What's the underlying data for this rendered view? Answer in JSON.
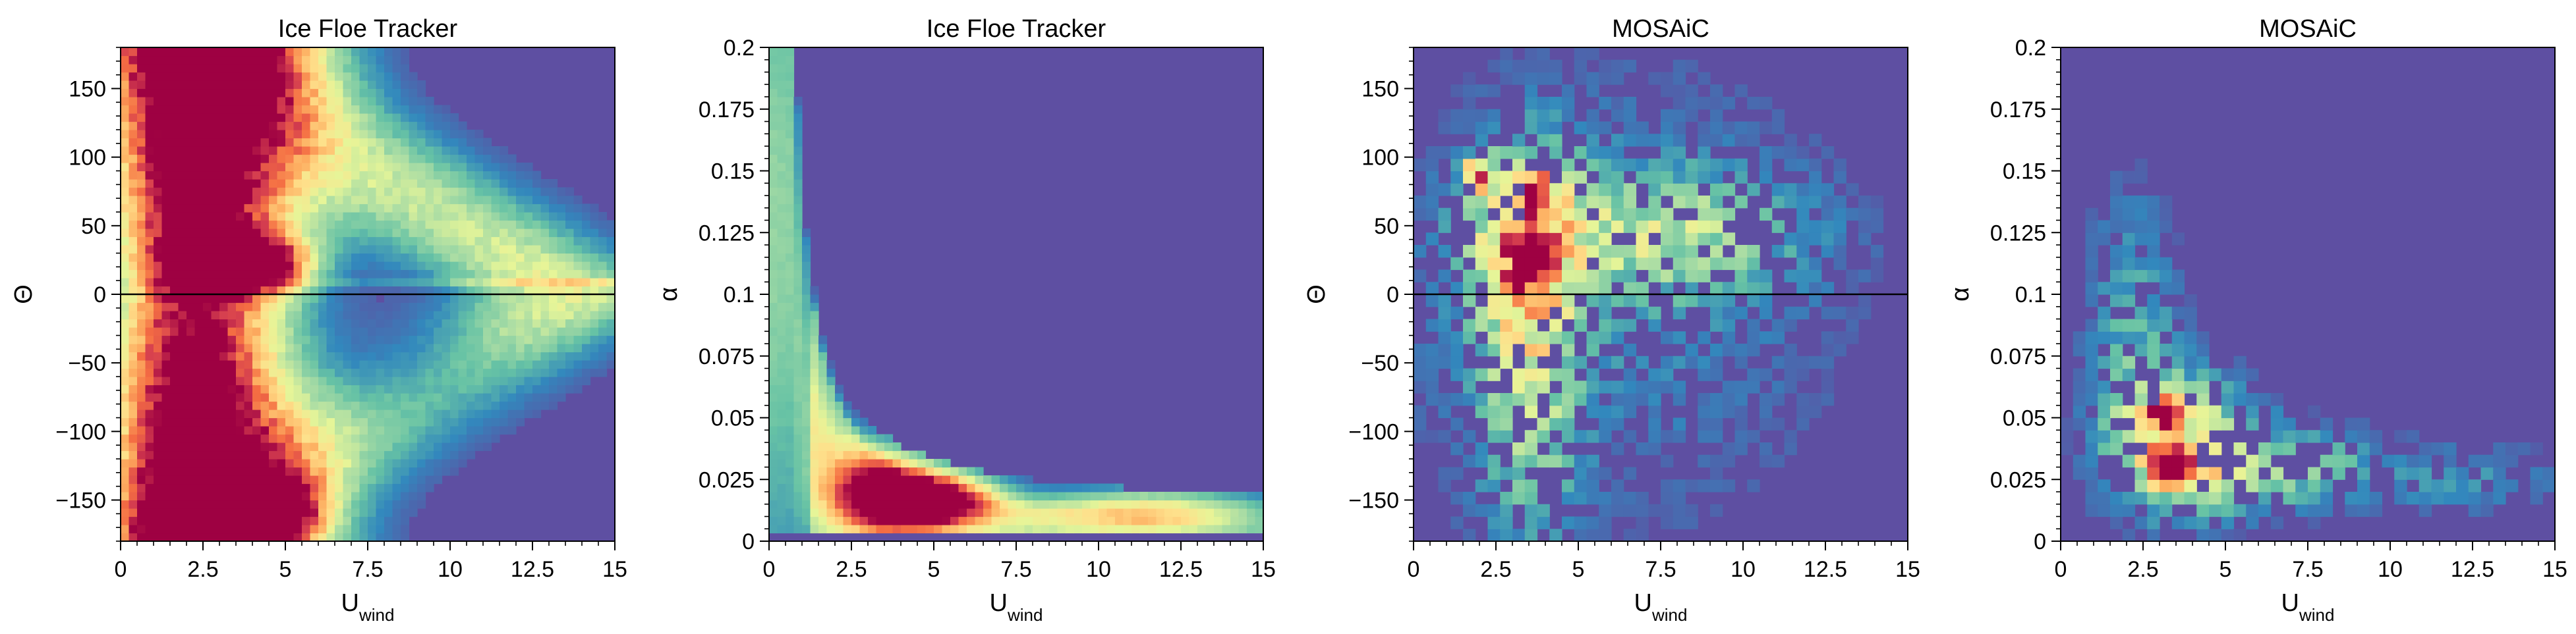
{
  "chart_data": [
    {
      "type": "heatmap",
      "title": "Ice Floe Tracker",
      "xlabel": "U",
      "xlabel_sub": "wind",
      "ylabel": "Θ",
      "xlim": [
        0,
        15
      ],
      "ylim": [
        -180,
        180
      ],
      "xticks": [
        "0",
        "2.5",
        "5",
        "7.5",
        "10",
        "12.5",
        "15"
      ],
      "yticks": [
        "−150",
        "−100",
        "−50",
        "0",
        "50",
        "100",
        "150"
      ],
      "ytick_values": [
        -150,
        -100,
        -50,
        0,
        50,
        100,
        150
      ],
      "bins": [
        60,
        60
      ],
      "reference_line": 0,
      "density_peaks": [
        {
          "x": 3.0,
          "y": 170,
          "intensity": 0.9
        },
        {
          "x": 2.8,
          "y": -168,
          "intensity": 0.95
        },
        {
          "x": 4.2,
          "y": 22,
          "intensity": 0.95
        },
        {
          "x": 2.6,
          "y": 22,
          "intensity": 0.7
        },
        {
          "x": 5.0,
          "y": -155,
          "intensity": 0.7
        }
      ]
    },
    {
      "type": "heatmap",
      "title": "Ice Floe Tracker",
      "xlabel": "U",
      "xlabel_sub": "wind",
      "ylabel": "α",
      "xlim": [
        0,
        15
      ],
      "ylim": [
        0,
        0.2
      ],
      "xticks": [
        "0",
        "2.5",
        "5",
        "7.5",
        "10",
        "12.5",
        "15"
      ],
      "yticks": [
        "0",
        "0.025",
        "0.05",
        "0.075",
        "0.1",
        "0.125",
        "0.15",
        "0.175",
        "0.2"
      ],
      "ytick_values": [
        0,
        0.025,
        0.05,
        0.075,
        0.1,
        0.125,
        0.15,
        0.175,
        0.2
      ],
      "bins": [
        60,
        60
      ],
      "density_peaks": [
        {
          "x": 4.8,
          "y": 0.017,
          "intensity": 1.0
        },
        {
          "x": 3.5,
          "y": 0.022,
          "intensity": 0.75
        }
      ]
    },
    {
      "type": "heatmap",
      "title": "MOSAiC",
      "xlabel": "U",
      "xlabel_sub": "wind",
      "ylabel": "Θ",
      "xlim": [
        0,
        15
      ],
      "ylim": [
        -180,
        180
      ],
      "xticks": [
        "0",
        "2.5",
        "5",
        "7.5",
        "10",
        "12.5",
        "15"
      ],
      "yticks": [
        "−150",
        "−100",
        "−50",
        "0",
        "50",
        "100",
        "150"
      ],
      "ytick_values": [
        -150,
        -100,
        -50,
        0,
        50,
        100,
        150
      ],
      "bins": [
        40,
        40
      ],
      "reference_line": 0,
      "density_peaks": [
        {
          "x": 3.3,
          "y": 20,
          "intensity": 1.0
        },
        {
          "x": 3.5,
          "y": 35,
          "intensity": 0.75
        },
        {
          "x": 1.9,
          "y": 88,
          "intensity": 0.7
        },
        {
          "x": 3.7,
          "y": 80,
          "intensity": 0.7
        }
      ]
    },
    {
      "type": "heatmap",
      "title": "MOSAiC",
      "xlabel": "U",
      "xlabel_sub": "wind",
      "ylabel": "α",
      "xlim": [
        0,
        15
      ],
      "ylim": [
        0,
        0.2
      ],
      "xticks": [
        "0",
        "2.5",
        "5",
        "7.5",
        "10",
        "12.5",
        "15"
      ],
      "yticks": [
        "0",
        "0.025",
        "0.05",
        "0.075",
        "0.1",
        "0.125",
        "0.15",
        "0.175",
        "0.2"
      ],
      "ytick_values": [
        0,
        0.025,
        0.05,
        0.075,
        0.1,
        0.125,
        0.15,
        0.175,
        0.2
      ],
      "bins": [
        40,
        40
      ],
      "density_peaks": [
        {
          "x": 3.2,
          "y": 0.05,
          "intensity": 1.0
        },
        {
          "x": 3.3,
          "y": 0.03,
          "intensity": 0.75
        }
      ]
    }
  ],
  "colormap": [
    "#5e4fa2",
    "#3288bd",
    "#66c2a5",
    "#abdda4",
    "#e6f598",
    "#fee08b",
    "#fdae61",
    "#f46d43",
    "#d53e4f",
    "#9e0142"
  ]
}
